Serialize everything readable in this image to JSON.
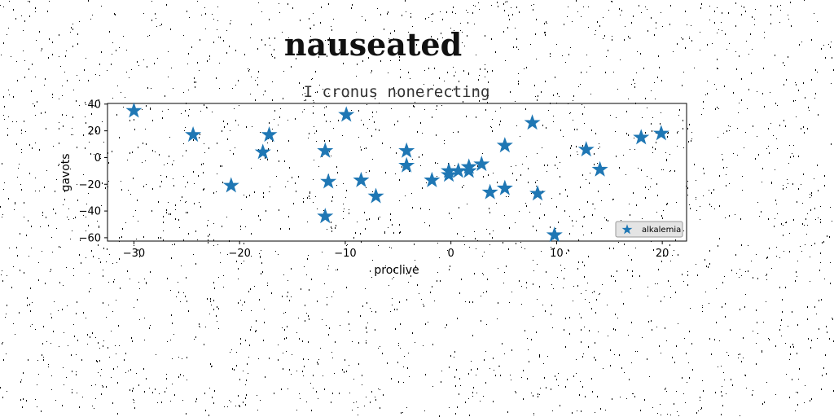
{
  "page": {
    "title": "nauseated"
  },
  "chart_data": {
    "type": "scatter",
    "title": "I cronus nonerecting",
    "xlabel": "proclive",
    "ylabel": "gavots",
    "xlim": [
      -32.5,
      22.3
    ],
    "ylim": [
      -62.5,
      40.5
    ],
    "xticks": [
      -30,
      -20,
      -10,
      0,
      10,
      20
    ],
    "yticks": [
      -60,
      -40,
      -20,
      0,
      20,
      40
    ],
    "grid": false,
    "legend_position": "lower-right",
    "marker": "star",
    "color": "#1f77b4",
    "series": [
      {
        "name": "alkalemia",
        "points": [
          [
            -30.0,
            35
          ],
          [
            -24.4,
            17
          ],
          [
            -20.8,
            -21
          ],
          [
            -17.8,
            4
          ],
          [
            -17.2,
            17
          ],
          [
            -11.9,
            5
          ],
          [
            -11.6,
            -18
          ],
          [
            -11.9,
            -44
          ],
          [
            -9.9,
            32
          ],
          [
            -8.5,
            -17
          ],
          [
            -7.1,
            -29
          ],
          [
            -4.2,
            5
          ],
          [
            -4.2,
            -6
          ],
          [
            -1.8,
            -17
          ],
          [
            -0.2,
            -10
          ],
          [
            -0.2,
            -13
          ],
          [
            0.7,
            -10
          ],
          [
            1.7,
            -7
          ],
          [
            1.7,
            -10
          ],
          [
            2.9,
            -5
          ],
          [
            3.7,
            -26
          ],
          [
            5.1,
            -23
          ],
          [
            5.1,
            9
          ],
          [
            7.7,
            26
          ],
          [
            8.2,
            -27
          ],
          [
            9.8,
            -58
          ],
          [
            12.8,
            6
          ],
          [
            14.1,
            -9
          ],
          [
            18.0,
            15
          ],
          [
            19.9,
            18
          ]
        ]
      }
    ]
  }
}
